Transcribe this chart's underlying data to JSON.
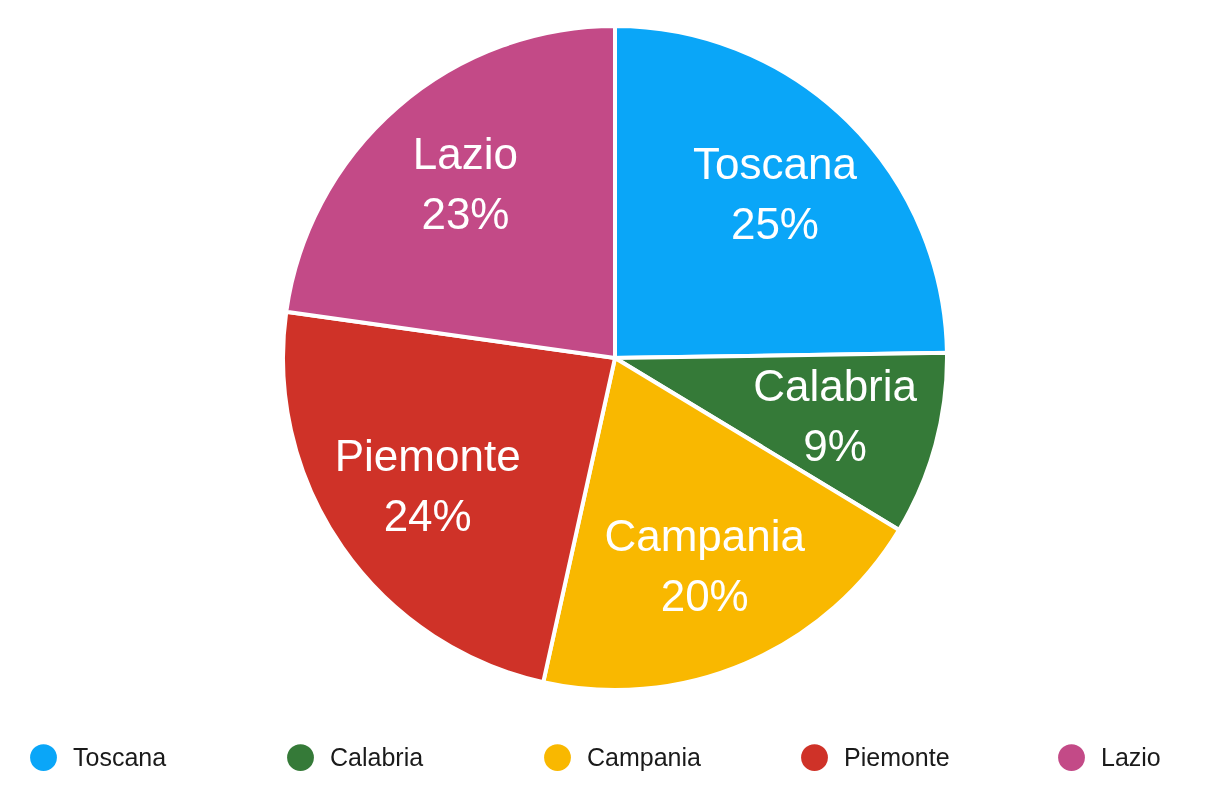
{
  "chart_data": {
    "type": "pie",
    "categories": [
      "Toscana",
      "Calabria",
      "Campania",
      "Piemonte",
      "Lazio"
    ],
    "values": [
      25,
      9,
      20,
      24,
      23
    ],
    "value_labels": [
      "25%",
      "9%",
      "20%",
      "24%",
      "23%"
    ],
    "colors": [
      "#0aa6f8",
      "#357a38",
      "#f9b800",
      "#cf3228",
      "#c34a87"
    ],
    "legend": "bottom"
  }
}
